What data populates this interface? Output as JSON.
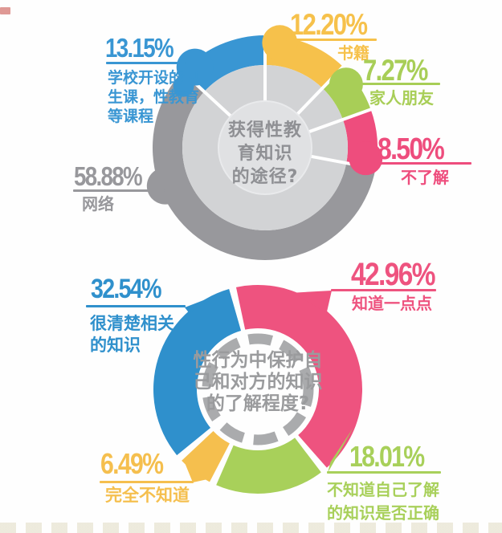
{
  "chart_data": [
    {
      "type": "pie",
      "variant": "donut-with-knobs",
      "question": "获得性教育知识的途径?",
      "question_display": "获得性教\n育知识\n的途径?",
      "direction": "clockwise",
      "start_angle_deg": 0,
      "legend_position": "around",
      "segments": [
        {
          "label": "书籍",
          "label_display": "书籍",
          "value": 12.2,
          "display": "12.20%",
          "color": "#f6c14b"
        },
        {
          "label": "家人朋友",
          "label_display": "家人朋友",
          "value": 7.27,
          "display": "7.27%",
          "color": "#a8ce57"
        },
        {
          "label": "不了解",
          "label_display": "不了解",
          "value": 8.5,
          "display": "8.50%",
          "color": "#ee4d7d"
        },
        {
          "label": "网络",
          "label_display": "网络",
          "value": 58.88,
          "display": "58.88%",
          "color": "#98989c"
        },
        {
          "label": "学校开设的卫生课，性教育等课程",
          "label_display": "学校开设的卫\n生课，性教育\n等课程",
          "value": 13.15,
          "display": "13.15%",
          "color": "#3996d3"
        }
      ]
    },
    {
      "type": "pie",
      "variant": "donut-with-pointers",
      "question": "性行为中保护自己和对方的知识的了解程度?",
      "question_display": "性行为中保护自\n己和对方的知识\n的了解程度?",
      "direction": "clockwise",
      "start_angle_deg": -14,
      "legend_position": "around",
      "segments": [
        {
          "label": "知道一点点",
          "label_display": "知道一点点",
          "value": 42.96,
          "display": "42.96%",
          "color": "#ee537f"
        },
        {
          "label": "不知道自己了解的知识是否正确",
          "label_display": "不知道自己了解\n的知识是否正确",
          "value": 18.01,
          "display": "18.01%",
          "color": "#a8d05a"
        },
        {
          "label": "完全不知道",
          "label_display": "完全不知道",
          "value": 6.49,
          "display": "6.49%",
          "color": "#f5bf4e"
        },
        {
          "label": "很清楚相关的知识",
          "label_display": "很清楚相关\n的知识",
          "value": 32.54,
          "display": "32.54%",
          "color": "#2f90cc"
        }
      ]
    }
  ],
  "palette": {
    "background": "#fefefe",
    "inner_ring": "#d2d3d5",
    "center_circle": "#e0e1e3",
    "center_circle_stroke": "#e9eaec",
    "center_text_top": "#8f9094",
    "center_text_bottom": "#9a9b9d",
    "dashed_ring": "#aaabad",
    "divider": "#ffffff"
  }
}
